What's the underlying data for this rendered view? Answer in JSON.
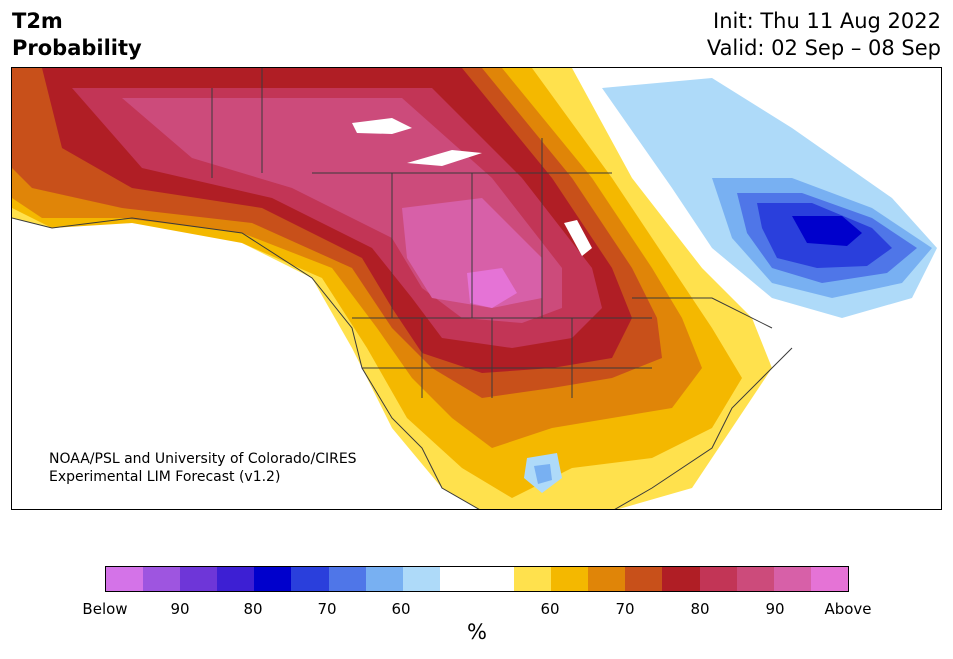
{
  "header": {
    "title_line1": "T2m",
    "title_line2": "Probability",
    "init": "Init: Thu 11 Aug 2022",
    "valid": "Valid: 02 Sep – 08 Sep"
  },
  "credit": {
    "line1": "NOAA/PSL and University of Colorado/CIRES",
    "line2": "Experimental LIM Forecast (v1.2)"
  },
  "colorbar": {
    "colors": [
      "#d473e8",
      "#9e55e0",
      "#6e36d8",
      "#3d1fd3",
      "#0000cc",
      "#2a3fdc",
      "#4f76e8",
      "#78b0f2",
      "#aedaf9",
      "#ffffff",
      "#ffffff",
      "#ffe14d",
      "#f4b800",
      "#e08508",
      "#c8501a",
      "#b01e25",
      "#c23556",
      "#cc4b7b",
      "#d760a8",
      "#e573d6"
    ],
    "ticks": [
      "Below",
      "90",
      "80",
      "70",
      "60",
      "60",
      "70",
      "80",
      "90",
      "Above"
    ],
    "unit": "%"
  },
  "colors": {
    "coastline": "#3a3a3a",
    "land": "#ffffff"
  }
}
